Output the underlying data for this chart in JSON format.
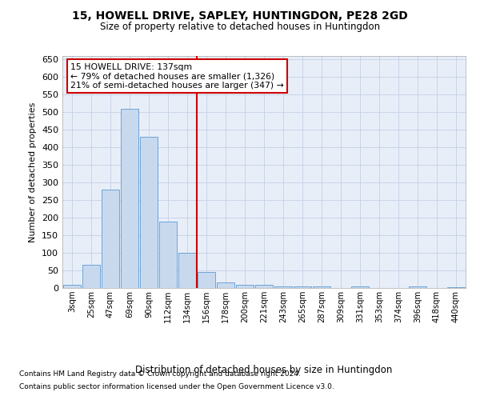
{
  "title": "15, HOWELL DRIVE, SAPLEY, HUNTINGDON, PE28 2GD",
  "subtitle": "Size of property relative to detached houses in Huntingdon",
  "xlabel": "Distribution of detached houses by size in Huntingdon",
  "ylabel": "Number of detached properties",
  "footnote1": "Contains HM Land Registry data © Crown copyright and database right 2024.",
  "footnote2": "Contains public sector information licensed under the Open Government Licence v3.0.",
  "bar_labels": [
    "3sqm",
    "25sqm",
    "47sqm",
    "69sqm",
    "90sqm",
    "112sqm",
    "134sqm",
    "156sqm",
    "178sqm",
    "200sqm",
    "221sqm",
    "243sqm",
    "265sqm",
    "287sqm",
    "309sqm",
    "331sqm",
    "353sqm",
    "374sqm",
    "396sqm",
    "418sqm",
    "440sqm"
  ],
  "bar_values": [
    10,
    65,
    280,
    510,
    430,
    190,
    100,
    45,
    15,
    10,
    10,
    5,
    5,
    5,
    0,
    5,
    0,
    0,
    5,
    0,
    3
  ],
  "bar_color": "#c8d9ee",
  "bar_edge_color": "#5b9bd5",
  "grid_color": "#c8d4e8",
  "background_color": "#e8eef8",
  "vline_color": "#cc0000",
  "annotation_title": "15 HOWELL DRIVE: 137sqm",
  "annotation_line1": "← 79% of detached houses are smaller (1,326)",
  "annotation_line2": "21% of semi-detached houses are larger (347) →",
  "annotation_box_color": "#ffffff",
  "annotation_box_edge": "#cc0000",
  "ylim": [
    0,
    660
  ],
  "yticks": [
    0,
    50,
    100,
    150,
    200,
    250,
    300,
    350,
    400,
    450,
    500,
    550,
    600,
    650
  ]
}
